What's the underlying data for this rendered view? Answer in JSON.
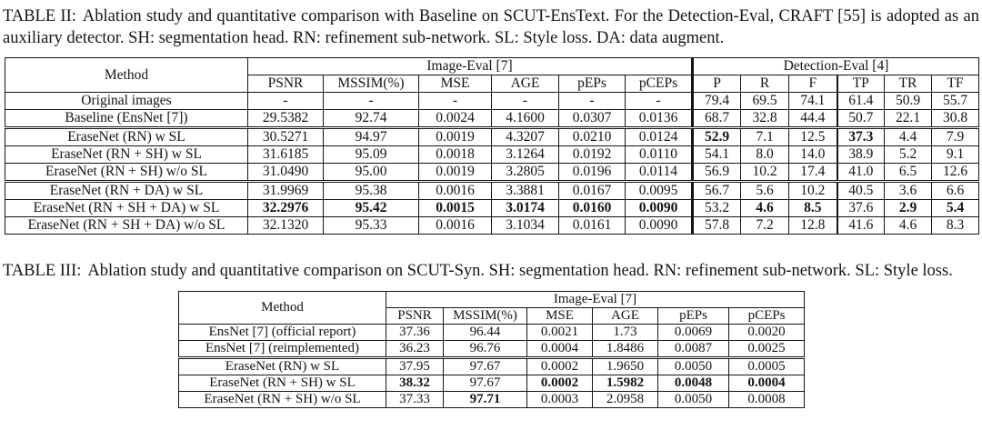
{
  "captions": {
    "table2_label": "TABLE II:",
    "table2_text": "Ablation study and quantitative comparison with Baseline on SCUT-EnsText. For the Detection-Eval, CRAFT [55] is adopted as an auxiliary detector. SH: segmentation head. RN: refinement sub-network. SL: Style loss. DA: data augment.",
    "table3_label": "TABLE III:",
    "table3_text": "Ablation study and quantitative comparison on SCUT-Syn. SH: segmentation head. RN: refinement sub-network. SL: Style loss."
  },
  "table2": {
    "method_header": "Method",
    "groups": [
      {
        "label": "Image-Eval [7]",
        "columns": [
          "PSNR",
          "MSSIM(%)",
          "MSE",
          "AGE",
          "pEPs",
          "pCEPs"
        ]
      },
      {
        "label": "Detection-Eval [4]",
        "columns": [
          "P",
          "R",
          "F",
          "TP",
          "TR",
          "TF"
        ]
      }
    ],
    "rows": [
      {
        "method": "Original images",
        "cells": [
          "-",
          "-",
          "-",
          "-",
          "-",
          "-",
          "79.4",
          "69.5",
          "74.1",
          "61.4",
          "50.9",
          "55.7"
        ],
        "bold": [],
        "group_start": false
      },
      {
        "method": "Baseline (EnsNet [7])",
        "cells": [
          "29.5382",
          "92.74",
          "0.0024",
          "4.1600",
          "0.0307",
          "0.0136",
          "68.7",
          "32.8",
          "44.4",
          "50.7",
          "22.1",
          "30.8"
        ],
        "bold": [],
        "group_start": false
      },
      {
        "method": "EraseNet (RN) w SL",
        "cells": [
          "30.5271",
          "94.97",
          "0.0019",
          "4.3207",
          "0.0210",
          "0.0124",
          "52.9",
          "7.1",
          "12.5",
          "37.3",
          "4.4",
          "7.9"
        ],
        "bold": [
          6,
          9
        ],
        "group_start": true
      },
      {
        "method": "EraseNet (RN + SH) w SL",
        "cells": [
          "31.6185",
          "95.09",
          "0.0018",
          "3.1264",
          "0.0192",
          "0.0110",
          "54.1",
          "8.0",
          "14.0",
          "38.9",
          "5.2",
          "9.1"
        ],
        "bold": [],
        "group_start": false
      },
      {
        "method": "EraseNet (RN + SH) w/o SL",
        "cells": [
          "31.0490",
          "95.00",
          "0.0019",
          "3.2805",
          "0.0196",
          "0.0114",
          "56.9",
          "10.2",
          "17.4",
          "41.0",
          "6.5",
          "12.6"
        ],
        "bold": [],
        "group_start": false
      },
      {
        "method": "EraseNet (RN + DA) w SL",
        "cells": [
          "31.9969",
          "95.38",
          "0.0016",
          "3.3881",
          "0.0167",
          "0.0095",
          "56.7",
          "5.6",
          "10.2",
          "40.5",
          "3.6",
          "6.6"
        ],
        "bold": [],
        "group_start": true
      },
      {
        "method": "EraseNet (RN + SH + DA) w SL",
        "cells": [
          "32.2976",
          "95.42",
          "0.0015",
          "3.0174",
          "0.0160",
          "0.0090",
          "53.2",
          "4.6",
          "8.5",
          "37.6",
          "2.9",
          "5.4"
        ],
        "bold": [
          0,
          1,
          2,
          3,
          4,
          5,
          7,
          8,
          10,
          11
        ],
        "group_start": false
      },
      {
        "method": "EraseNet (RN + SH + DA) w/o SL",
        "cells": [
          "32.1320",
          "95.33",
          "0.0016",
          "3.1034",
          "0.0161",
          "0.0090",
          "57.8",
          "7.2",
          "12.8",
          "41.6",
          "4.6",
          "8.3"
        ],
        "bold": [],
        "group_start": false
      }
    ]
  },
  "table3": {
    "method_header": "Method",
    "groups": [
      {
        "label": "Image-Eval [7]",
        "columns": [
          "PSNR",
          "MSSIM(%)",
          "MSE",
          "AGE",
          "pEPs",
          "pCEPs"
        ]
      }
    ],
    "rows": [
      {
        "method": "EnsNet [7] (official report)",
        "cells": [
          "37.36",
          "96.44",
          "0.0021",
          "1.73",
          "0.0069",
          "0.0020"
        ],
        "bold": [],
        "group_start": false
      },
      {
        "method": "EnsNet [7] (reimplemented)",
        "cells": [
          "36.23",
          "96.76",
          "0.0004",
          "1.8486",
          "0.0087",
          "0.0025"
        ],
        "bold": [],
        "group_start": false
      },
      {
        "method": "EraseNet (RN) w SL",
        "cells": [
          "37.95",
          "97.67",
          "0.0002",
          "1.9650",
          "0.0050",
          "0.0005"
        ],
        "bold": [],
        "group_start": true
      },
      {
        "method": "EraseNet (RN + SH) w SL",
        "cells": [
          "38.32",
          "97.67",
          "0.0002",
          "1.5982",
          "0.0048",
          "0.0004"
        ],
        "bold": [
          0,
          2,
          3,
          4,
          5
        ],
        "group_start": false
      },
      {
        "method": "EraseNet (RN + SH) w/o SL",
        "cells": [
          "37.33",
          "97.71",
          "0.0003",
          "2.0958",
          "0.0050",
          "0.0008"
        ],
        "bold": [
          1
        ],
        "group_start": false
      }
    ]
  }
}
